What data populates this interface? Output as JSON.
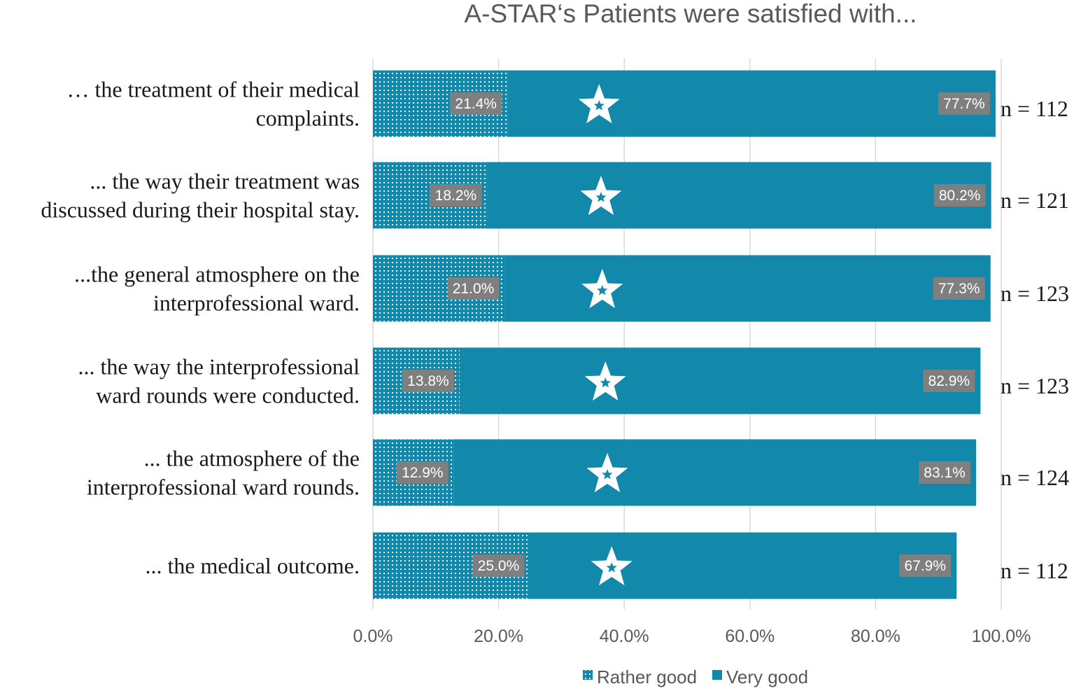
{
  "chart_data": {
    "type": "bar",
    "orientation": "horizontal",
    "stacked": true,
    "title": "A-STAR‘s Patients were satisfied with...",
    "categories": [
      [
        "… the treatment  of their medical",
        "complaints."
      ],
      [
        "... the way their  treatment  was",
        "discussed  during  their  hospital  stay."
      ],
      [
        "...the general atmosphere  on the",
        "interprofessional  ward."
      ],
      [
        "... the way the interprofessional",
        "ward rounds  were conducted."
      ],
      [
        "... the atmosphere  of the",
        "interprofessional  ward rounds."
      ],
      [
        "... the medical  outcome."
      ]
    ],
    "series": [
      {
        "name": "Rather good",
        "values": [
          21.4,
          18.2,
          21.0,
          13.8,
          12.9,
          25.0
        ],
        "labels": [
          "21.4%",
          "18.2%",
          "21.0%",
          "13.8%",
          "12.9%",
          "25.0%"
        ],
        "color": "#1288ab",
        "pattern": "dotted"
      },
      {
        "name": "Very good",
        "values": [
          77.7,
          80.2,
          77.3,
          82.9,
          83.1,
          67.9
        ],
        "labels": [
          "77.7%",
          "80.2%",
          "77.3%",
          "82.9%",
          "83.1%",
          "67.9%"
        ],
        "color": "#1288ab",
        "pattern": "solid"
      }
    ],
    "n_labels": [
      "n = 112",
      "n = 121",
      "n = 123",
      "n = 123",
      "n = 124",
      "n = 112"
    ],
    "star_positions": [
      36,
      36.3,
      36.5,
      37,
      37.3,
      38
    ],
    "x_ticks": [
      "0.0%",
      "20.0%",
      "40.0%",
      "60.0%",
      "80.0%",
      "100.0%"
    ],
    "xlim": [
      0,
      100
    ],
    "grid": true,
    "legend_position": "bottom"
  }
}
